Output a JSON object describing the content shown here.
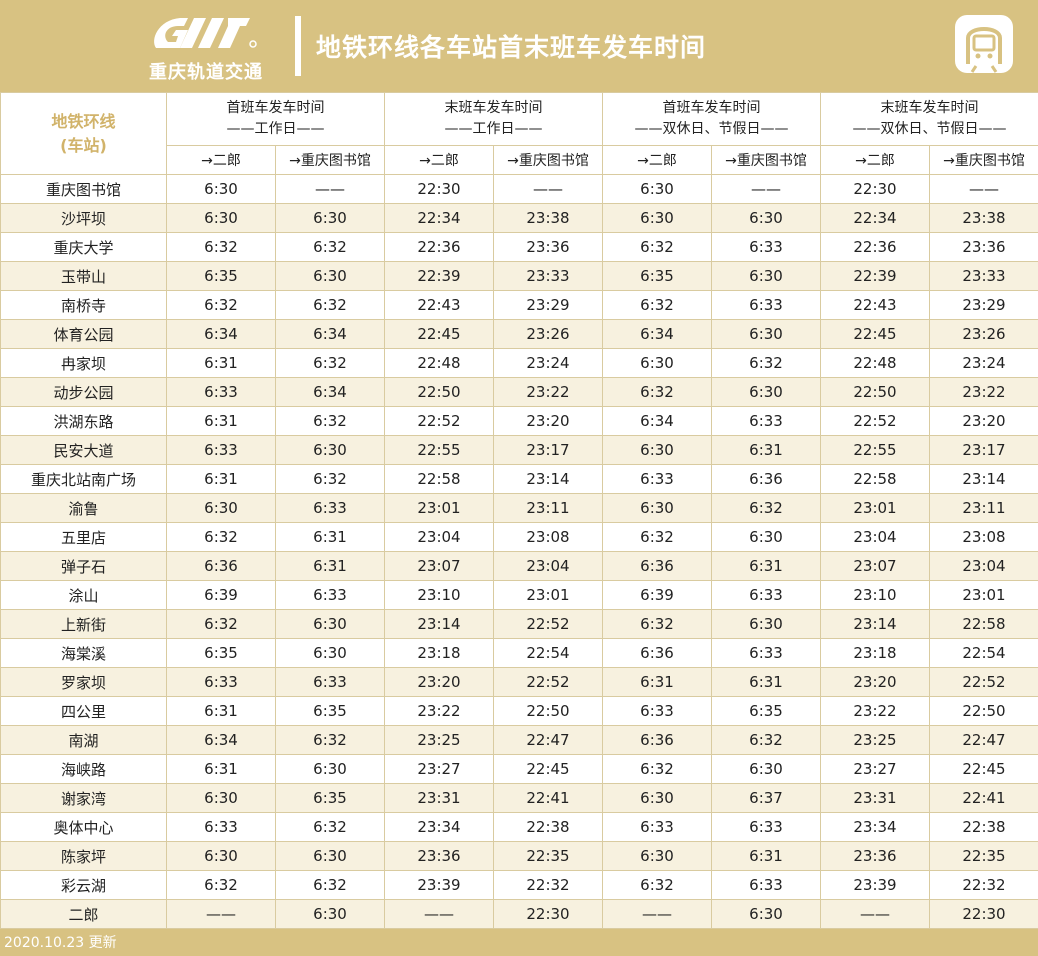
{
  "header": {
    "logo_text": "重庆轨道交通",
    "title": "地铁环线各车站首末班车发车时间"
  },
  "table": {
    "corner_label_line1": "地铁环线",
    "corner_label_line2": "(车站)",
    "groups": [
      {
        "line1": "首班车发车时间",
        "line2": "——工作日——"
      },
      {
        "line1": "末班车发车时间",
        "line2": "——工作日——"
      },
      {
        "line1": "首班车发车时间",
        "line2": "——双休日、节假日——"
      },
      {
        "line1": "末班车发车时间",
        "line2": "——双休日、节假日——"
      }
    ],
    "directions": [
      "→二郎",
      "→重庆图书馆",
      "→二郎",
      "→重庆图书馆",
      "→二郎",
      "→重庆图书馆",
      "→二郎",
      "→重庆图书馆"
    ],
    "rows": [
      {
        "station": "重庆图书馆",
        "times": [
          "6:30",
          "——",
          "22:30",
          "——",
          "6:30",
          "——",
          "22:30",
          "——"
        ]
      },
      {
        "station": "沙坪坝",
        "times": [
          "6:30",
          "6:30",
          "22:34",
          "23:38",
          "6:30",
          "6:30",
          "22:34",
          "23:38"
        ]
      },
      {
        "station": "重庆大学",
        "times": [
          "6:32",
          "6:32",
          "22:36",
          "23:36",
          "6:32",
          "6:33",
          "22:36",
          "23:36"
        ]
      },
      {
        "station": "玉带山",
        "times": [
          "6:35",
          "6:30",
          "22:39",
          "23:33",
          "6:35",
          "6:30",
          "22:39",
          "23:33"
        ]
      },
      {
        "station": "南桥寺",
        "times": [
          "6:32",
          "6:32",
          "22:43",
          "23:29",
          "6:32",
          "6:33",
          "22:43",
          "23:29"
        ]
      },
      {
        "station": "体育公园",
        "times": [
          "6:34",
          "6:34",
          "22:45",
          "23:26",
          "6:34",
          "6:30",
          "22:45",
          "23:26"
        ]
      },
      {
        "station": "冉家坝",
        "times": [
          "6:31",
          "6:32",
          "22:48",
          "23:24",
          "6:30",
          "6:32",
          "22:48",
          "23:24"
        ]
      },
      {
        "station": "动步公园",
        "times": [
          "6:33",
          "6:34",
          "22:50",
          "23:22",
          "6:32",
          "6:30",
          "22:50",
          "23:22"
        ]
      },
      {
        "station": "洪湖东路",
        "times": [
          "6:31",
          "6:32",
          "22:52",
          "23:20",
          "6:34",
          "6:33",
          "22:52",
          "23:20"
        ]
      },
      {
        "station": "民安大道",
        "times": [
          "6:33",
          "6:30",
          "22:55",
          "23:17",
          "6:30",
          "6:31",
          "22:55",
          "23:17"
        ]
      },
      {
        "station": "重庆北站南广场",
        "times": [
          "6:31",
          "6:32",
          "22:58",
          "23:14",
          "6:33",
          "6:36",
          "22:58",
          "23:14"
        ]
      },
      {
        "station": "渝鲁",
        "times": [
          "6:30",
          "6:33",
          "23:01",
          "23:11",
          "6:30",
          "6:32",
          "23:01",
          "23:11"
        ]
      },
      {
        "station": "五里店",
        "times": [
          "6:32",
          "6:31",
          "23:04",
          "23:08",
          "6:32",
          "6:30",
          "23:04",
          "23:08"
        ]
      },
      {
        "station": "弹子石",
        "times": [
          "6:36",
          "6:31",
          "23:07",
          "23:04",
          "6:36",
          "6:31",
          "23:07",
          "23:04"
        ]
      },
      {
        "station": "涂山",
        "times": [
          "6:39",
          "6:33",
          "23:10",
          "23:01",
          "6:39",
          "6:33",
          "23:10",
          "23:01"
        ]
      },
      {
        "station": "上新街",
        "times": [
          "6:32",
          "6:30",
          "23:14",
          "22:52",
          "6:32",
          "6:30",
          "23:14",
          "22:58"
        ]
      },
      {
        "station": "海棠溪",
        "times": [
          "6:35",
          "6:30",
          "23:18",
          "22:54",
          "6:36",
          "6:33",
          "23:18",
          "22:54"
        ]
      },
      {
        "station": "罗家坝",
        "times": [
          "6:33",
          "6:33",
          "23:20",
          "22:52",
          "6:31",
          "6:31",
          "23:20",
          "22:52"
        ]
      },
      {
        "station": "四公里",
        "times": [
          "6:31",
          "6:35",
          "23:22",
          "22:50",
          "6:33",
          "6:35",
          "23:22",
          "22:50"
        ]
      },
      {
        "station": "南湖",
        "times": [
          "6:34",
          "6:32",
          "23:25",
          "22:47",
          "6:36",
          "6:32",
          "23:25",
          "22:47"
        ]
      },
      {
        "station": "海峡路",
        "times": [
          "6:31",
          "6:30",
          "23:27",
          "22:45",
          "6:32",
          "6:30",
          "23:27",
          "22:45"
        ]
      },
      {
        "station": "谢家湾",
        "times": [
          "6:30",
          "6:35",
          "23:31",
          "22:41",
          "6:30",
          "6:37",
          "23:31",
          "22:41"
        ]
      },
      {
        "station": "奥体中心",
        "times": [
          "6:33",
          "6:32",
          "23:34",
          "22:38",
          "6:33",
          "6:33",
          "23:34",
          "22:38"
        ]
      },
      {
        "station": "陈家坪",
        "times": [
          "6:30",
          "6:30",
          "23:36",
          "22:35",
          "6:30",
          "6:31",
          "23:36",
          "22:35"
        ]
      },
      {
        "station": "彩云湖",
        "times": [
          "6:32",
          "6:32",
          "23:39",
          "22:32",
          "6:32",
          "6:33",
          "23:39",
          "22:32"
        ]
      },
      {
        "station": "二郎",
        "times": [
          "——",
          "6:30",
          "——",
          "22:30",
          "——",
          "6:30",
          "——",
          "22:30"
        ]
      }
    ]
  },
  "footer": {
    "updated": "2020.10.23 更新"
  },
  "colors": {
    "brand": "#d8c282",
    "accent_text": "#d1b36a",
    "row_alt": "#f7f1df"
  },
  "icons": {
    "logo": "cqmetro-logo",
    "metro": "metro-train-icon"
  }
}
